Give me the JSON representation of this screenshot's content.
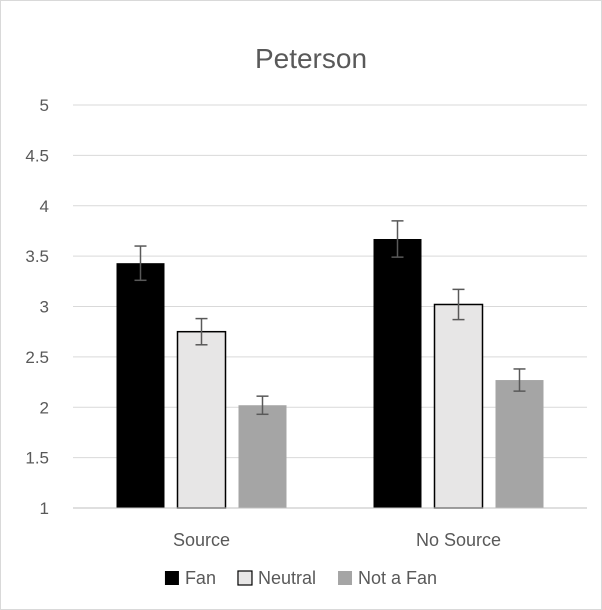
{
  "chart_data": {
    "type": "bar",
    "title": "Peterson",
    "xlabel": "",
    "ylabel": "",
    "ylim": [
      1,
      5
    ],
    "yticks": [
      "1",
      "1.5",
      "2",
      "2.5",
      "3",
      "3.5",
      "4",
      "4.5",
      "5"
    ],
    "ytick_values": [
      1,
      1.5,
      2,
      2.5,
      3,
      3.5,
      4,
      4.5,
      5
    ],
    "grid": true,
    "legend_position": "bottom",
    "categories": [
      "Source",
      "No Source"
    ],
    "series": [
      {
        "name": "Fan",
        "values": [
          3.43,
          3.67
        ],
        "error": [
          0.17,
          0.18
        ],
        "color": "#000000"
      },
      {
        "name": "Neutral",
        "values": [
          2.75,
          3.02
        ],
        "error": [
          0.13,
          0.15
        ],
        "color": "#e7e6e6"
      },
      {
        "name": "Not a Fan",
        "values": [
          2.02,
          2.27
        ],
        "error": [
          0.09,
          0.11
        ],
        "color": "#a5a5a5"
      }
    ]
  }
}
